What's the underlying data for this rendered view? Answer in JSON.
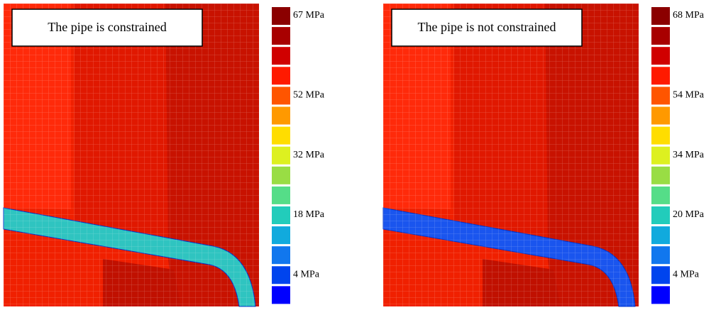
{
  "panels": [
    {
      "title": "The pipe is constrained",
      "band_color": "#2fc4c0",
      "legend": [
        {
          "color": "#8b0000",
          "label": "67 MPa"
        },
        {
          "color": "#a80000"
        },
        {
          "color": "#d00000"
        },
        {
          "color": "#ff1a00"
        },
        {
          "color": "#ff5500",
          "label": "52 MPa"
        },
        {
          "color": "#ff9900"
        },
        {
          "color": "#ffdd00"
        },
        {
          "color": "#ddf020",
          "label": "32 MPa"
        },
        {
          "color": "#99dd44"
        },
        {
          "color": "#55dd88"
        },
        {
          "color": "#22ccbb",
          "label": "18 MPa"
        },
        {
          "color": "#11aadd"
        },
        {
          "color": "#1177ee"
        },
        {
          "color": "#0044ee",
          "label": "4 MPa"
        },
        {
          "color": "#0000ff"
        }
      ]
    },
    {
      "title": "The pipe is not constrained",
      "band_color": "#1a55ee",
      "legend": [
        {
          "color": "#8b0000",
          "label": "68 MPa"
        },
        {
          "color": "#a80000"
        },
        {
          "color": "#d00000"
        },
        {
          "color": "#ff1a00"
        },
        {
          "color": "#ff5500",
          "label": "54 MPa"
        },
        {
          "color": "#ff9900"
        },
        {
          "color": "#ffdd00"
        },
        {
          "color": "#ddf020",
          "label": "34 MPa"
        },
        {
          "color": "#99dd44"
        },
        {
          "color": "#55dd88"
        },
        {
          "color": "#22ccbb",
          "label": "20 MPa"
        },
        {
          "color": "#11aadd"
        },
        {
          "color": "#1177ee"
        },
        {
          "color": "#0044ee",
          "label": "4 MPa"
        },
        {
          "color": "#0000ff"
        }
      ]
    }
  ]
}
